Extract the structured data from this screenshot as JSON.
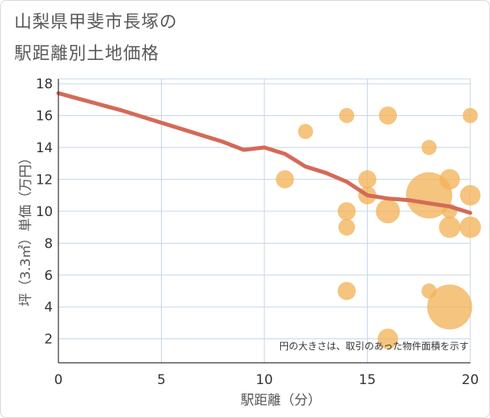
{
  "title_line1": "山梨県甲斐市長塚の",
  "title_line2": "駅距離別土地価格",
  "chart_data": {
    "type": "scatter",
    "title": "山梨県甲斐市長塚の駅距離別土地価格",
    "xlabel": "駅距離（分）",
    "ylabel": "坪（3.3㎡）単価（万円）",
    "xlim": [
      0,
      20
    ],
    "ylim": [
      0.5,
      18.3
    ],
    "x_ticks": [
      0,
      5,
      10,
      15,
      20
    ],
    "y_ticks": [
      2,
      4,
      6,
      8,
      10,
      12,
      14,
      16,
      18
    ],
    "grid": true,
    "note": "円の大きさは、取引のあった物件面積を示す",
    "points": [
      {
        "x": 11,
        "y": 12,
        "size": 2
      },
      {
        "x": 12,
        "y": 15,
        "size": 1
      },
      {
        "x": 14,
        "y": 16,
        "size": 1
      },
      {
        "x": 14,
        "y": 10,
        "size": 2
      },
      {
        "x": 14,
        "y": 9,
        "size": 1.5
      },
      {
        "x": 14,
        "y": 5,
        "size": 2
      },
      {
        "x": 15,
        "y": 12,
        "size": 2
      },
      {
        "x": 15,
        "y": 11,
        "size": 2
      },
      {
        "x": 16,
        "y": 16,
        "size": 2
      },
      {
        "x": 16,
        "y": 10,
        "size": 5
      },
      {
        "x": 16,
        "y": 2,
        "size": 3
      },
      {
        "x": 18,
        "y": 14,
        "size": 1
      },
      {
        "x": 18,
        "y": 11,
        "size": 28
      },
      {
        "x": 18,
        "y": 5,
        "size": 1
      },
      {
        "x": 19,
        "y": 12,
        "size": 3
      },
      {
        "x": 19,
        "y": 10,
        "size": 1
      },
      {
        "x": 19,
        "y": 9,
        "size": 3.5
      },
      {
        "x": 19,
        "y": 4,
        "size": 26
      },
      {
        "x": 20,
        "y": 16,
        "size": 1
      },
      {
        "x": 20,
        "y": 11,
        "size": 3
      },
      {
        "x": 20,
        "y": 9,
        "size": 3.5
      }
    ],
    "trend_line": {
      "x": [
        0,
        1,
        2,
        3,
        4,
        5,
        6,
        7,
        8,
        9,
        10,
        11,
        12,
        13,
        14,
        15,
        16,
        17,
        18,
        19,
        20
      ],
      "y": [
        17.4,
        17.05,
        16.7,
        16.35,
        15.95,
        15.55,
        15.15,
        14.75,
        14.35,
        13.85,
        14.0,
        13.6,
        12.8,
        12.4,
        11.85,
        11.0,
        10.8,
        10.7,
        10.5,
        10.3,
        9.9
      ]
    },
    "colors": {
      "point": "#f2b45b",
      "line": "#d46a57",
      "grid": "#c6d6e6",
      "axis": "#333333"
    }
  }
}
